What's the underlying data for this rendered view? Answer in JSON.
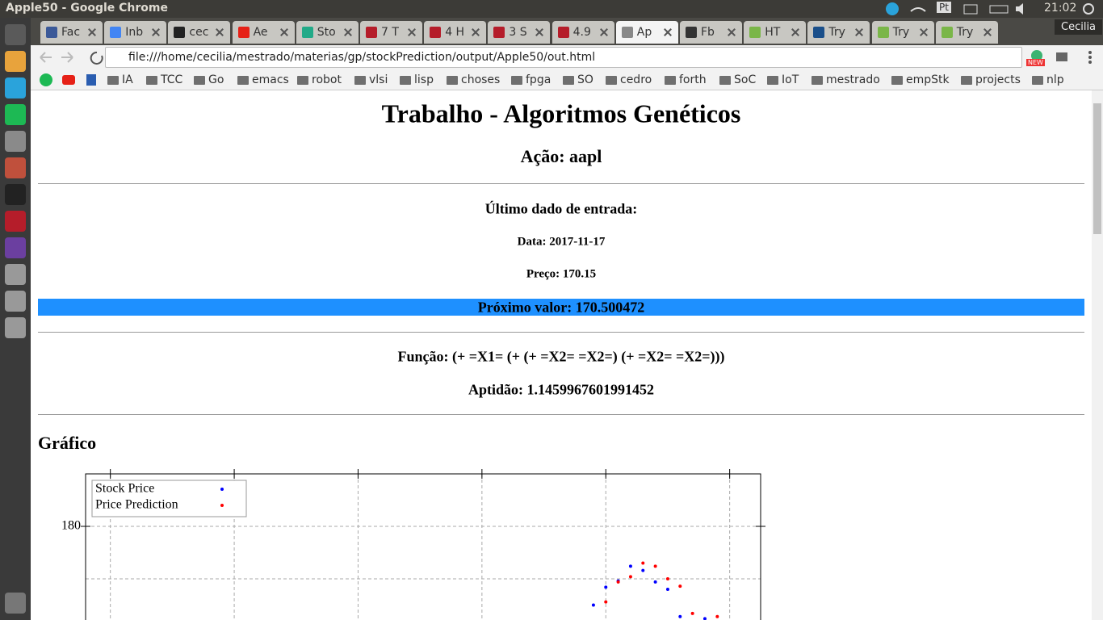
{
  "window": {
    "title": "Apple50 - Google Chrome",
    "clock": "21:02",
    "keyboard": "Pt",
    "user": "Cecilia"
  },
  "browser": {
    "tabs": [
      "Fac",
      "Inb",
      "cec",
      "Ae",
      "Sto",
      "7 T",
      "4 H",
      "3 S",
      "4.9",
      "Ap",
      "Fb",
      "HT",
      "Try",
      "Try",
      "Try"
    ],
    "url": "file:///home/cecilia/mestrado/materias/gp/stockPrediction/output/Apple50/out.html",
    "badge": "NEW",
    "bookmarks": [
      "IA",
      "TCC",
      "Go",
      "emacs",
      "robot",
      "vlsi",
      "lisp",
      "choses",
      "fpga",
      "SO",
      "cedro",
      "forth",
      "SoC",
      "IoT",
      "mestrado",
      "empStk",
      "projects",
      "nlp"
    ]
  },
  "page": {
    "title": "Trabalho - Algoritmos Genéticos",
    "stock": "Ação: aapl",
    "last_input": "Último dado de entrada:",
    "date": "Data: 2017-11-17",
    "price": "Preço: 170.15",
    "next_value": "Próximo valor: 170.500472",
    "function": "Função: (+ =X1= (+ (+ =X2= =X2=) (+ =X2= =X2=)))",
    "fitness": "Aptidão: 1.1459967601991452",
    "chart_heading": "Gráfico"
  },
  "chart_data": {
    "type": "scatter",
    "series": [
      {
        "name": "Stock Price",
        "color": "#0000ff",
        "x": [
          39,
          40,
          41,
          42,
          43,
          44,
          45,
          46,
          48
        ],
        "values": [
          172.5,
          174.2,
          174.8,
          176.2,
          175.8,
          174.7,
          174.0,
          171.4,
          171.2
        ]
      },
      {
        "name": "Price Prediction",
        "color": "#ff0000",
        "x": [
          40,
          41,
          42,
          43,
          44,
          45,
          46,
          47,
          49
        ],
        "values": [
          172.8,
          174.7,
          175.2,
          176.5,
          176.2,
          175.0,
          174.3,
          171.7,
          171.4
        ]
      }
    ],
    "xlim": [
      -2,
      52.5
    ],
    "ylim": [
      170,
      185
    ],
    "xticks": [
      0,
      10,
      20,
      30,
      40,
      50
    ],
    "yticks": [
      180
    ],
    "minor_yticks": [
      175
    ],
    "grid": true,
    "legend": "upper-left"
  }
}
